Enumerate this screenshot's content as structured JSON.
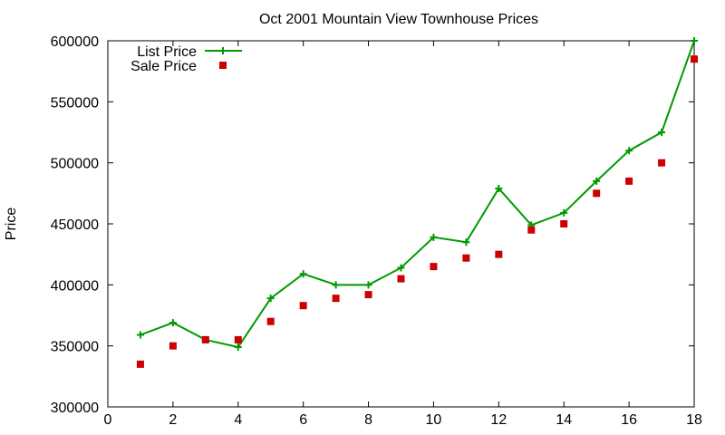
{
  "chart_data": {
    "type": "line",
    "title": "Oct 2001 Mountain View Townhouse Prices",
    "xlabel": "",
    "ylabel": "Price",
    "xlim": [
      0,
      18
    ],
    "ylim": [
      300000,
      600000
    ],
    "xticks": [
      0,
      2,
      4,
      6,
      8,
      10,
      12,
      14,
      16,
      18
    ],
    "yticks": [
      300000,
      350000,
      400000,
      450000,
      500000,
      550000,
      600000
    ],
    "grid": false,
    "legend_position": "top-left",
    "x": [
      1,
      2,
      3,
      4,
      5,
      6,
      7,
      8,
      9,
      10,
      11,
      12,
      13,
      14,
      15,
      16,
      17,
      18
    ],
    "series": [
      {
        "name": "List Price",
        "style": "linespoints",
        "marker": "plus",
        "color": "#009900",
        "values": [
          359000,
          369000,
          355000,
          349000,
          389000,
          409000,
          400000,
          400000,
          414000,
          439000,
          435000,
          479000,
          449000,
          459000,
          485000,
          510000,
          525000,
          600000
        ]
      },
      {
        "name": "Sale Price",
        "style": "points",
        "marker": "square",
        "color": "#cc0000",
        "values": [
          335000,
          350000,
          355000,
          355000,
          370000,
          383000,
          389000,
          392000,
          405000,
          415000,
          422000,
          425000,
          445000,
          450000,
          475000,
          485000,
          500000,
          585000
        ]
      }
    ]
  }
}
